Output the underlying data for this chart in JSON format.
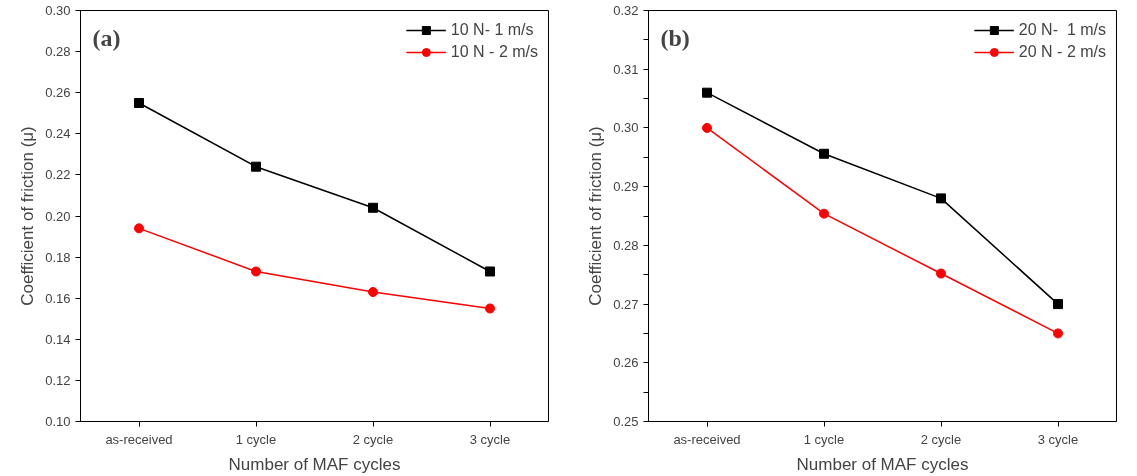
{
  "chart_data": [
    {
      "type": "line",
      "annotations": [
        "(a)"
      ],
      "xlabel": "Number of MAF cycles",
      "ylabel": "Coefficient of friction (μ)",
      "categories": [
        "as-received",
        "1 cycle",
        "2 cycle",
        "3 cycle"
      ],
      "ylim": [
        0.1,
        0.3
      ],
      "yticks": [
        {
          "value": 0.1,
          "label": "0.10"
        },
        {
          "value": 0.12,
          "label": "0.12"
        },
        {
          "value": 0.14,
          "label": "0.14"
        },
        {
          "value": 0.16,
          "label": "0.16"
        },
        {
          "value": 0.18,
          "label": "0.18"
        },
        {
          "value": 0.2,
          "label": "0.20"
        },
        {
          "value": 0.22,
          "label": "0.22"
        },
        {
          "value": 0.24,
          "label": "0.24"
        },
        {
          "value": 0.26,
          "label": "0.26"
        },
        {
          "value": 0.28,
          "label": "0.28"
        },
        {
          "value": 0.3,
          "label": "0.30"
        }
      ],
      "legend": "top right",
      "line_style": "solid",
      "series": [
        {
          "name": "10 N- 1 m/s",
          "color": "#000000",
          "marker": "square",
          "values": [
            0.255,
            0.224,
            0.204,
            0.173
          ]
        },
        {
          "name": "10 N - 2 m/s",
          "color": "#ff0000",
          "marker": "circle",
          "values": [
            0.194,
            0.173,
            0.163,
            0.155
          ]
        }
      ]
    },
    {
      "type": "line",
      "annotations": [
        "(b)"
      ],
      "xlabel": "Number of MAF cycles",
      "ylabel": "Coefficient of friction (μ)",
      "categories": [
        "as-received",
        "1 cycle",
        "2 cycle",
        "3 cycle"
      ],
      "ylim": [
        0.25,
        0.32
      ],
      "yticks": [
        {
          "value": 0.25,
          "label": "0.25"
        },
        {
          "value": 0.255,
          "label": null
        },
        {
          "value": 0.26,
          "label": "0.26"
        },
        {
          "value": 0.265,
          "label": null
        },
        {
          "value": 0.27,
          "label": "0.27"
        },
        {
          "value": 0.275,
          "label": null
        },
        {
          "value": 0.28,
          "label": "0.28"
        },
        {
          "value": 0.285,
          "label": null
        },
        {
          "value": 0.29,
          "label": "0.29"
        },
        {
          "value": 0.295,
          "label": null
        },
        {
          "value": 0.3,
          "label": "0.30"
        },
        {
          "value": 0.305,
          "label": null
        },
        {
          "value": 0.31,
          "label": "0.31"
        },
        {
          "value": 0.315,
          "label": null
        },
        {
          "value": 0.32,
          "label": "0.32"
        }
      ],
      "legend": "top right",
      "line_style": "solid",
      "series": [
        {
          "name": "20 N-  1 m/s",
          "color": "#000000",
          "marker": "square",
          "values": [
            0.306,
            0.2956,
            0.288,
            0.27
          ]
        },
        {
          "name": "20 N - 2 m/s",
          "color": "#ff0000",
          "marker": "circle",
          "values": [
            0.3,
            0.2854,
            0.2752,
            0.265
          ]
        }
      ]
    }
  ]
}
